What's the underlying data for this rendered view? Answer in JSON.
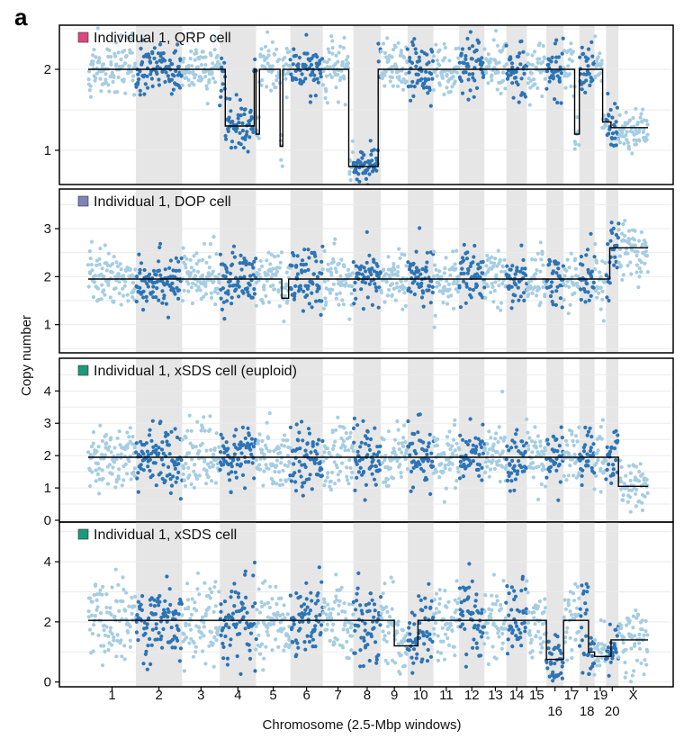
{
  "panel_letter": "a",
  "colors": {
    "light_points": "#a6cde2",
    "dark_points": "#2c74b5",
    "band": "#e6e6e6",
    "copy_line": "#000000",
    "grid": "#ebebeb"
  },
  "chart_data": {
    "type": "scatter",
    "ylabel": "Copy number",
    "xlabel": "Chromosome (2.5-Mbp windows)",
    "x_ticks_top": [
      "1",
      "2",
      "3",
      "4",
      "5",
      "6",
      "7",
      "8",
      "9",
      "10",
      "11",
      "12",
      "13",
      "14",
      "15",
      "17",
      "19",
      "X"
    ],
    "x_ticks_bottom": [
      "16",
      "18",
      "20"
    ],
    "chromosome_windows": [
      {
        "chrom": "1",
        "windows": 100
      },
      {
        "chrom": "2",
        "windows": 97
      },
      {
        "chrom": "3",
        "windows": 79
      },
      {
        "chrom": "4",
        "windows": 76
      },
      {
        "chrom": "5",
        "windows": 72
      },
      {
        "chrom": "6",
        "windows": 68
      },
      {
        "chrom": "7",
        "windows": 64
      },
      {
        "chrom": "8",
        "windows": 58
      },
      {
        "chrom": "9",
        "windows": 56
      },
      {
        "chrom": "10",
        "windows": 54
      },
      {
        "chrom": "11",
        "windows": 54
      },
      {
        "chrom": "12",
        "windows": 53
      },
      {
        "chrom": "13",
        "windows": 46
      },
      {
        "chrom": "14",
        "windows": 43
      },
      {
        "chrom": "15",
        "windows": 41
      },
      {
        "chrom": "16",
        "windows": 36
      },
      {
        "chrom": "17",
        "windows": 33
      },
      {
        "chrom": "18",
        "windows": 32
      },
      {
        "chrom": "19",
        "windows": 24
      },
      {
        "chrom": "20",
        "windows": 26
      },
      {
        "chrom": "X",
        "windows": 62
      }
    ],
    "panels": [
      {
        "legend": "Individual 1, QRP cell",
        "legend_color": "#e0467f",
        "ylim": [
          0.6,
          2.5
        ],
        "yticks": [
          1,
          2
        ],
        "noise_sd": 0.17,
        "segments": [
          {
            "chrom": "1",
            "cn": 2.0
          },
          {
            "chrom": "2",
            "cn": 2.0
          },
          {
            "chrom": "3",
            "cn": 2.0
          },
          {
            "chrom": "4",
            "from": 0,
            "to": 0.15,
            "cn": 2.0
          },
          {
            "chrom": "4",
            "from": 0.15,
            "to": 0.95,
            "cn": 1.3
          },
          {
            "chrom": "4",
            "from": 0.95,
            "to": 1,
            "cn": 2.0
          },
          {
            "chrom": "5",
            "from": 0,
            "to": 0.1,
            "cn": 1.2
          },
          {
            "chrom": "5",
            "from": 0.1,
            "to": 0.7,
            "cn": 2.0
          },
          {
            "chrom": "5",
            "from": 0.7,
            "to": 0.78,
            "cn": 1.05
          },
          {
            "chrom": "5",
            "from": 0.78,
            "to": 1,
            "cn": 2.0
          },
          {
            "chrom": "6",
            "cn": 2.0
          },
          {
            "chrom": "7",
            "from": 0,
            "to": 0.85,
            "cn": 2.0
          },
          {
            "chrom": "7",
            "from": 0.85,
            "to": 1,
            "cn": 0.8
          },
          {
            "chrom": "8",
            "from": 0,
            "to": 0.9,
            "cn": 0.8
          },
          {
            "chrom": "8",
            "from": 0.9,
            "to": 1,
            "cn": 2.0
          },
          {
            "chrom": "9",
            "cn": 2.0
          },
          {
            "chrom": "10",
            "cn": 2.0
          },
          {
            "chrom": "11",
            "cn": 2.0
          },
          {
            "chrom": "12",
            "cn": 2.0
          },
          {
            "chrom": "13",
            "cn": 2.0
          },
          {
            "chrom": "14",
            "cn": 2.0
          },
          {
            "chrom": "15",
            "cn": 2.0
          },
          {
            "chrom": "16",
            "cn": 2.0
          },
          {
            "chrom": "17",
            "from": 0,
            "to": 0.7,
            "cn": 2.0
          },
          {
            "chrom": "17",
            "from": 0.7,
            "to": 1,
            "cn": 1.2
          },
          {
            "chrom": "18",
            "cn": 2.0
          },
          {
            "chrom": "19",
            "from": 0,
            "to": 0.7,
            "cn": 2.0
          },
          {
            "chrom": "19",
            "from": 0.7,
            "to": 1,
            "cn": 1.35
          },
          {
            "chrom": "20",
            "from": 0,
            "to": 0.4,
            "cn": 1.35
          },
          {
            "chrom": "20",
            "from": 0.4,
            "to": 1,
            "cn": 1.28
          },
          {
            "chrom": "X",
            "cn": 1.28
          }
        ]
      },
      {
        "legend": "Individual 1, DOP cell",
        "legend_color": "#7d84bb",
        "ylim": [
          0.45,
          3.75
        ],
        "yticks": [
          1,
          2,
          3
        ],
        "noise_sd": 0.3,
        "segments": [
          {
            "chrom": "1",
            "cn": 1.95
          },
          {
            "chrom": "2",
            "cn": 1.95
          },
          {
            "chrom": "3",
            "cn": 1.95
          },
          {
            "chrom": "4",
            "cn": 1.95
          },
          {
            "chrom": "5",
            "from": 0,
            "to": 0.75,
            "cn": 1.95
          },
          {
            "chrom": "5",
            "from": 0.75,
            "to": 0.95,
            "cn": 1.55
          },
          {
            "chrom": "5",
            "from": 0.95,
            "to": 1,
            "cn": 1.95
          },
          {
            "chrom": "6",
            "cn": 1.95
          },
          {
            "chrom": "7",
            "cn": 1.95
          },
          {
            "chrom": "8",
            "cn": 1.95
          },
          {
            "chrom": "9",
            "cn": 1.95
          },
          {
            "chrom": "10",
            "cn": 1.95
          },
          {
            "chrom": "11",
            "cn": 1.95
          },
          {
            "chrom": "12",
            "cn": 1.95
          },
          {
            "chrom": "13",
            "cn": 1.95
          },
          {
            "chrom": "14",
            "cn": 1.95
          },
          {
            "chrom": "15",
            "cn": 1.95
          },
          {
            "chrom": "16",
            "cn": 1.95
          },
          {
            "chrom": "17",
            "cn": 1.95
          },
          {
            "chrom": "18",
            "cn": 1.95
          },
          {
            "chrom": "19",
            "cn": 1.95
          },
          {
            "chrom": "20",
            "from": 0,
            "to": 0.3,
            "cn": 1.95
          },
          {
            "chrom": "20",
            "from": 0.3,
            "to": 1,
            "cn": 2.6
          },
          {
            "chrom": "X",
            "cn": 2.6
          }
        ]
      },
      {
        "legend": "Individual 1, xSDS cell (euploid)",
        "legend_color": "#1b9a7b",
        "ylim": [
          0,
          4.9
        ],
        "yticks": [
          0,
          1,
          2,
          3,
          4
        ],
        "noise_sd": 0.48,
        "segments": [
          {
            "chrom": "1",
            "cn": 1.95
          },
          {
            "chrom": "2",
            "cn": 1.95
          },
          {
            "chrom": "3",
            "cn": 1.95
          },
          {
            "chrom": "4",
            "cn": 1.95
          },
          {
            "chrom": "5",
            "cn": 1.95
          },
          {
            "chrom": "6",
            "cn": 1.95
          },
          {
            "chrom": "7",
            "cn": 1.95
          },
          {
            "chrom": "8",
            "cn": 1.95
          },
          {
            "chrom": "9",
            "cn": 1.95
          },
          {
            "chrom": "10",
            "cn": 1.95
          },
          {
            "chrom": "11",
            "cn": 1.95
          },
          {
            "chrom": "12",
            "cn": 1.95
          },
          {
            "chrom": "13",
            "cn": 1.95
          },
          {
            "chrom": "14",
            "cn": 1.95
          },
          {
            "chrom": "15",
            "cn": 1.95
          },
          {
            "chrom": "16",
            "cn": 1.95
          },
          {
            "chrom": "17",
            "cn": 1.95
          },
          {
            "chrom": "18",
            "cn": 1.95
          },
          {
            "chrom": "19",
            "cn": 1.95
          },
          {
            "chrom": "20",
            "cn": 1.95
          },
          {
            "chrom": "X",
            "cn": 1.05
          }
        ]
      },
      {
        "legend": "Individual 1, xSDS cell",
        "legend_color": "#1b9a7b",
        "ylim": [
          -0.1,
          5.2
        ],
        "yticks": [
          0,
          2,
          4
        ],
        "noise_sd": 0.65,
        "segments": [
          {
            "chrom": "1",
            "cn": 2.05
          },
          {
            "chrom": "2",
            "cn": 2.05
          },
          {
            "chrom": "3",
            "cn": 2.05
          },
          {
            "chrom": "4",
            "cn": 2.05
          },
          {
            "chrom": "5",
            "cn": 2.05
          },
          {
            "chrom": "6",
            "cn": 2.05
          },
          {
            "chrom": "7",
            "cn": 2.05
          },
          {
            "chrom": "8",
            "cn": 2.05
          },
          {
            "chrom": "9",
            "from": 0,
            "to": 0.5,
            "cn": 2.05
          },
          {
            "chrom": "9",
            "from": 0.5,
            "to": 1,
            "cn": 1.2
          },
          {
            "chrom": "10",
            "from": 0,
            "to": 0.4,
            "cn": 1.2
          },
          {
            "chrom": "10",
            "from": 0.4,
            "to": 1,
            "cn": 2.05
          },
          {
            "chrom": "11",
            "cn": 2.05
          },
          {
            "chrom": "12",
            "cn": 2.05
          },
          {
            "chrom": "13",
            "cn": 2.05
          },
          {
            "chrom": "14",
            "cn": 2.05
          },
          {
            "chrom": "15",
            "cn": 2.05
          },
          {
            "chrom": "16",
            "cn": 0.75
          },
          {
            "chrom": "17",
            "cn": 2.05
          },
          {
            "chrom": "18",
            "from": 0,
            "to": 0.6,
            "cn": 2.05
          },
          {
            "chrom": "18",
            "from": 0.6,
            "to": 1,
            "cn": 1.0
          },
          {
            "chrom": "19",
            "cn": 0.85
          },
          {
            "chrom": "20",
            "from": 0,
            "to": 0.4,
            "cn": 0.85
          },
          {
            "chrom": "20",
            "from": 0.4,
            "to": 1,
            "cn": 1.4
          },
          {
            "chrom": "X",
            "cn": 1.4
          }
        ]
      }
    ]
  }
}
